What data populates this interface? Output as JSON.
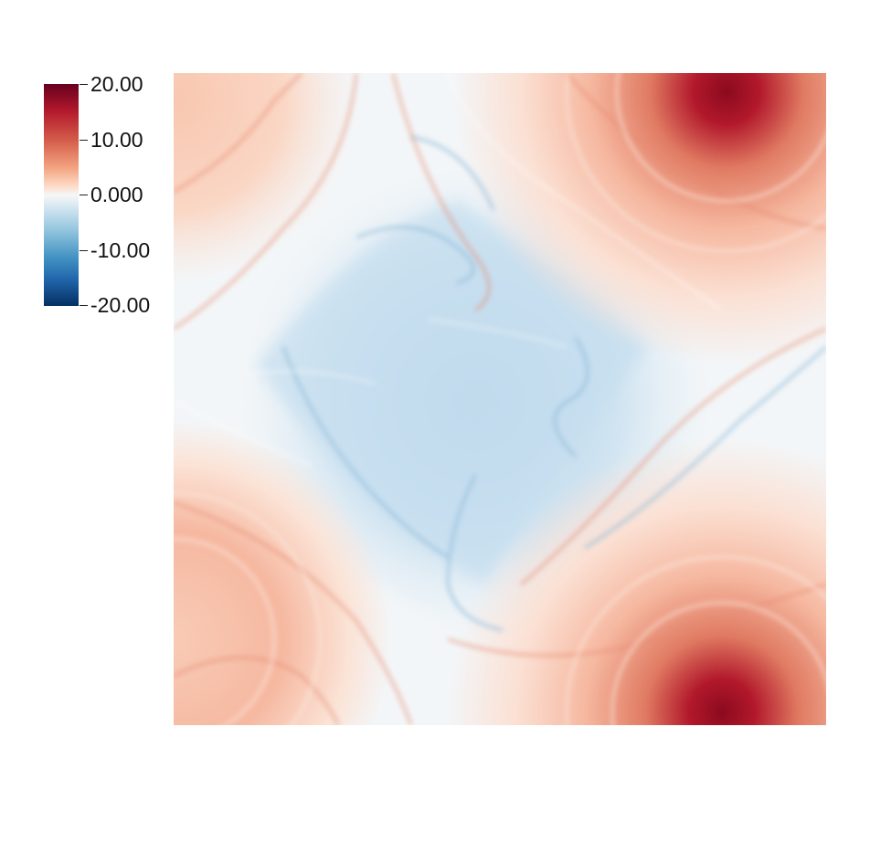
{
  "colorbar": {
    "ticks": [
      "20.00",
      "10.00",
      "0.000",
      "-10.00",
      "-20.00"
    ],
    "colormap": [
      "#67001f",
      "#b2182b",
      "#d6604d",
      "#f4a582",
      "#fddbc7",
      "#f7f7f7",
      "#d1e5f0",
      "#92c5de",
      "#4393c3",
      "#2166ac",
      "#053061"
    ]
  },
  "field": {
    "description_colors": {
      "positive_peak": "#8b0a1e",
      "positive_mid": "#f4a582",
      "positive_low": "#fbe3d6",
      "negative_low": "#d6e8f3",
      "negative_mid": "#a9cde4",
      "negative_peak": "#4f8fc0"
    }
  }
}
